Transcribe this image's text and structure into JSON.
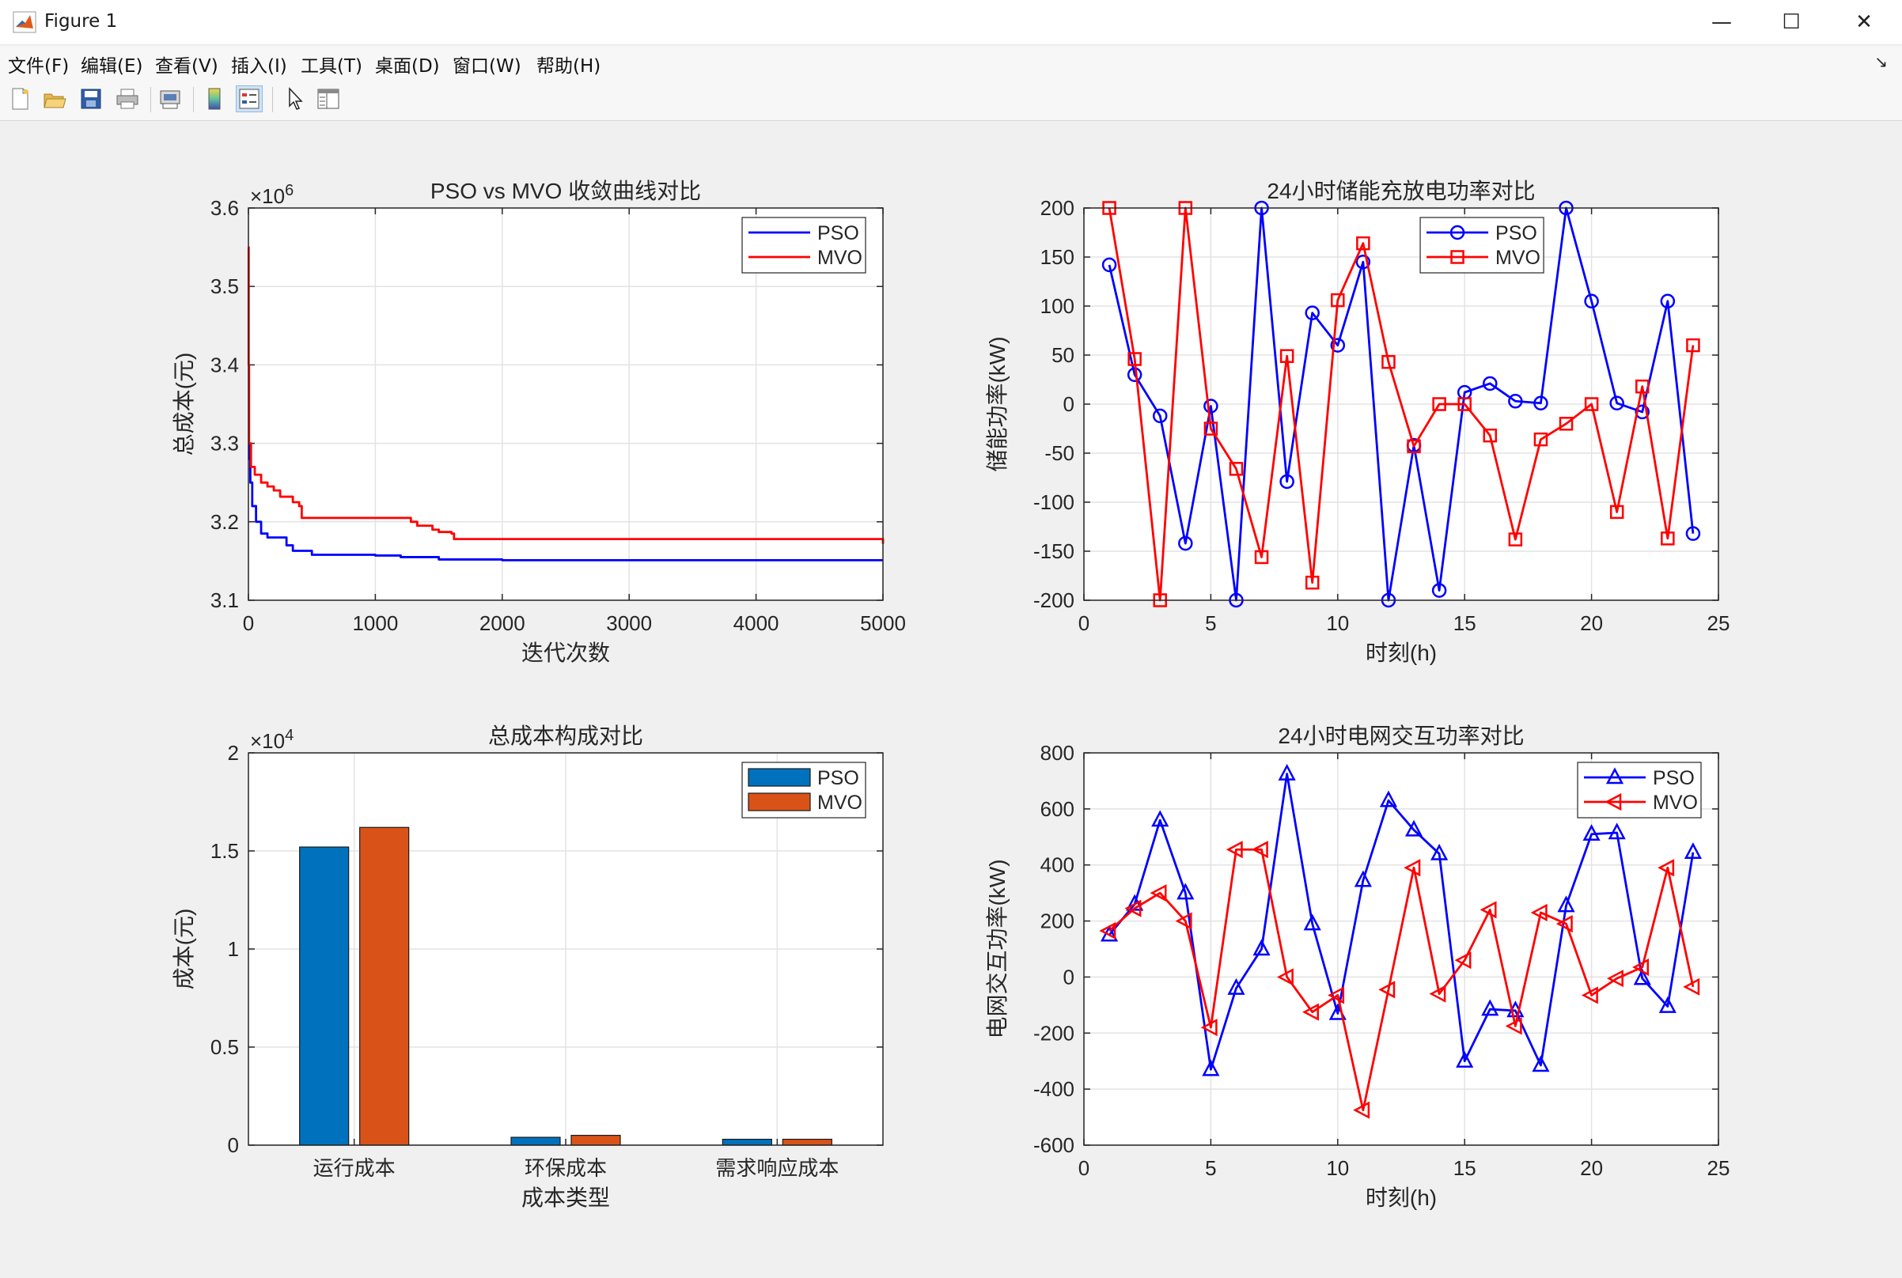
{
  "window": {
    "title": "Figure 1",
    "minimize_glyph": "—",
    "maximize_glyph": "☐",
    "close_glyph": "✕"
  },
  "menu": [
    "文件(F)",
    "编辑(E)",
    "查看(V)",
    "插入(I)",
    "工具(T)",
    "桌面(D)",
    "窗口(W)",
    "帮助(H)"
  ],
  "dock_glyph": "↘",
  "toolbar": {
    "icons": [
      "new-figure-icon",
      "open-file-icon",
      "save-icon",
      "print-icon",
      "print-preview-icon",
      "colorbar-icon",
      "legend-icon",
      "pointer-icon",
      "property-inspector-icon"
    ]
  },
  "colors": {
    "pso_line": "#0000ff",
    "mvo_line": "#ff0000",
    "pso_bar": "#0072bd",
    "mvo_bar": "#d95319"
  },
  "chart_data": [
    {
      "type": "line",
      "title": "PSO vs MVO 收敛曲线对比",
      "xlabel": "迭代次数",
      "ylabel": "总成本(元)",
      "y_exponent_label": "×10",
      "y_exponent_power": "6",
      "xlim": [
        0,
        5000
      ],
      "ylim": [
        3.1,
        3.6
      ],
      "xticks": [
        0,
        1000,
        2000,
        3000,
        4000,
        5000
      ],
      "yticks": [
        3.1,
        3.2,
        3.3,
        3.4,
        3.5,
        3.6
      ],
      "xtick_labels": [
        "0",
        "1000",
        "2000",
        "3000",
        "4000",
        "5000"
      ],
      "ytick_labels": [
        "3.1",
        "3.2",
        "3.3",
        "3.4",
        "3.5",
        "3.6"
      ],
      "grid": true,
      "legend_position": "top-right",
      "series": [
        {
          "name": "PSO",
          "color": "#0000ff",
          "x": [
            0,
            5,
            15,
            30,
            60,
            100,
            150,
            200,
            300,
            350,
            500,
            700,
            1000,
            1200,
            1500,
            2000,
            3000,
            5000
          ],
          "y": [
            3.3,
            3.28,
            3.25,
            3.22,
            3.2,
            3.185,
            3.18,
            3.18,
            3.17,
            3.163,
            3.158,
            3.158,
            3.157,
            3.155,
            3.152,
            3.151,
            3.151,
            3.151
          ]
        },
        {
          "name": "MVO",
          "color": "#ff0000",
          "x": [
            0,
            2,
            5,
            20,
            50,
            100,
            150,
            200,
            250,
            350,
            400,
            420,
            600,
            800,
            1000,
            1280,
            1330,
            1450,
            1500,
            1600,
            1620,
            3000,
            4990,
            5000
          ],
          "y": [
            3.55,
            3.4,
            3.3,
            3.27,
            3.26,
            3.25,
            3.245,
            3.24,
            3.232,
            3.225,
            3.22,
            3.205,
            3.205,
            3.205,
            3.205,
            3.2,
            3.195,
            3.19,
            3.187,
            3.185,
            3.178,
            3.178,
            3.178,
            3.172
          ]
        }
      ]
    },
    {
      "type": "line",
      "title": "24小时储能充放电功率对比",
      "xlabel": "时刻(h)",
      "ylabel": "储能功率(kW)",
      "xlim": [
        0,
        25
      ],
      "ylim": [
        -200,
        200
      ],
      "xticks": [
        0,
        5,
        10,
        15,
        20,
        25
      ],
      "yticks": [
        -200,
        -150,
        -100,
        -50,
        0,
        50,
        100,
        150,
        200
      ],
      "xtick_labels": [
        "0",
        "5",
        "10",
        "15",
        "20",
        "25"
      ],
      "ytick_labels": [
        "-200",
        "-150",
        "-100",
        "-50",
        "0",
        "50",
        "100",
        "150",
        "200"
      ],
      "grid": true,
      "legend_position": "top-center",
      "series": [
        {
          "name": "PSO",
          "color": "#0000ff",
          "marker": "circle",
          "x": [
            1,
            2,
            3,
            4,
            5,
            6,
            7,
            8,
            9,
            10,
            11,
            12,
            13,
            14,
            15,
            16,
            17,
            18,
            19,
            20,
            21,
            22,
            23,
            24
          ],
          "y": [
            142,
            30,
            -12,
            -142,
            -2,
            -200,
            200,
            -79,
            93,
            60,
            145,
            -200,
            -42,
            -190,
            12,
            21,
            3,
            1,
            200,
            105,
            1,
            -8,
            105,
            -132
          ]
        },
        {
          "name": "MVO",
          "color": "#ff0000",
          "marker": "square",
          "x": [
            1,
            2,
            3,
            4,
            5,
            6,
            7,
            8,
            9,
            10,
            11,
            12,
            13,
            14,
            15,
            16,
            17,
            18,
            19,
            20,
            21,
            22,
            23,
            24
          ],
          "y": [
            200,
            46,
            -200,
            200,
            -25,
            -66,
            -156,
            49,
            -182,
            106,
            164,
            43,
            -43,
            0,
            0,
            -32,
            -138,
            -36,
            -20,
            0,
            -110,
            18,
            -137,
            60
          ]
        }
      ]
    },
    {
      "type": "bar",
      "title": "总成本构成对比",
      "xlabel": "成本类型",
      "ylabel": "成本(元)",
      "y_exponent_label": "×10",
      "y_exponent_power": "4",
      "categories": [
        "运行成本",
        "环保成本",
        "需求响应成本"
      ],
      "ylim": [
        0,
        2
      ],
      "yticks": [
        0,
        0.5,
        1,
        1.5,
        2
      ],
      "ytick_labels": [
        "0",
        "0.5",
        "1",
        "1.5",
        "2"
      ],
      "grid": true,
      "legend_position": "top-right",
      "series": [
        {
          "name": "PSO",
          "color": "#0072bd",
          "values": [
            1.52,
            0.04,
            0.03
          ]
        },
        {
          "name": "MVO",
          "color": "#d95319",
          "values": [
            1.62,
            0.05,
            0.03
          ]
        }
      ]
    },
    {
      "type": "line",
      "title": "24小时电网交互功率对比",
      "xlabel": "时刻(h)",
      "ylabel": "电网交互功率(kW)",
      "xlim": [
        0,
        25
      ],
      "ylim": [
        -600,
        800
      ],
      "xticks": [
        0,
        5,
        10,
        15,
        20,
        25
      ],
      "yticks": [
        -600,
        -400,
        -200,
        0,
        200,
        400,
        600,
        800
      ],
      "xtick_labels": [
        "0",
        "5",
        "10",
        "15",
        "20",
        "25"
      ],
      "ytick_labels": [
        "-600",
        "-400",
        "-200",
        "0",
        "200",
        "400",
        "600",
        "800"
      ],
      "grid": true,
      "legend_position": "top-right",
      "series": [
        {
          "name": "PSO",
          "color": "#0000ff",
          "marker": "triangle-up",
          "x": [
            1,
            2,
            3,
            4,
            5,
            6,
            7,
            8,
            9,
            10,
            11,
            12,
            13,
            14,
            15,
            16,
            17,
            18,
            19,
            20,
            21,
            22,
            23,
            24
          ],
          "y": [
            150,
            260,
            560,
            300,
            -330,
            -40,
            100,
            725,
            190,
            -130,
            345,
            630,
            525,
            440,
            -300,
            -115,
            -120,
            -315,
            255,
            510,
            515,
            -5,
            -105,
            445
          ]
        },
        {
          "name": "MVO",
          "color": "#ff0000",
          "marker": "triangle-left",
          "x": [
            1,
            2,
            3,
            4,
            5,
            6,
            7,
            8,
            9,
            10,
            11,
            12,
            13,
            14,
            15,
            16,
            17,
            18,
            19,
            20,
            21,
            22,
            23,
            24
          ],
          "y": [
            165,
            245,
            300,
            200,
            -180,
            455,
            455,
            0,
            -125,
            -65,
            -475,
            -45,
            390,
            -60,
            60,
            240,
            -175,
            230,
            190,
            -65,
            -5,
            35,
            390,
            -35
          ]
        }
      ]
    }
  ]
}
